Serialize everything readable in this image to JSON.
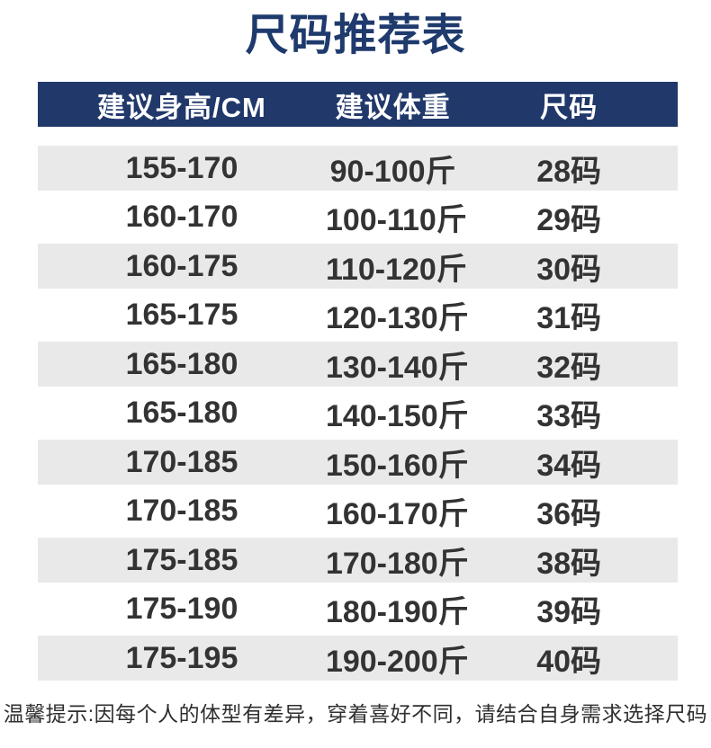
{
  "chart_data": {
    "type": "table",
    "title": "尺码推荐表",
    "columns": [
      "建议身高/CM",
      "建议体重",
      "尺码"
    ],
    "rows": [
      [
        "155-170",
        "90-100斤",
        "28码"
      ],
      [
        "160-170",
        "100-110斤",
        "29码"
      ],
      [
        "160-175",
        "110-120斤",
        "30码"
      ],
      [
        "165-175",
        "120-130斤",
        "31码"
      ],
      [
        "165-180",
        "130-140斤",
        "32码"
      ],
      [
        "165-180",
        "140-150斤",
        "33码"
      ],
      [
        "170-185",
        "150-160斤",
        "34码"
      ],
      [
        "170-185",
        "160-170斤",
        "36码"
      ],
      [
        "175-185",
        "170-180斤",
        "38码"
      ],
      [
        "175-190",
        "180-190斤",
        "39码"
      ],
      [
        "175-195",
        "190-200斤",
        "40码"
      ]
    ],
    "note": "温馨提示:因每个人的体型有差异，穿着喜好不同，请结合自身需求选择尺码",
    "layout": {
      "title_color": "#1f3a6d",
      "header_bg": "#21386b",
      "header_text_color": "#ffffff",
      "alt_row_bg": "#e9e9e9",
      "body_text_color": "#333333",
      "shaded_row_indexes": "even (0,2,4,6,8,10)"
    }
  }
}
